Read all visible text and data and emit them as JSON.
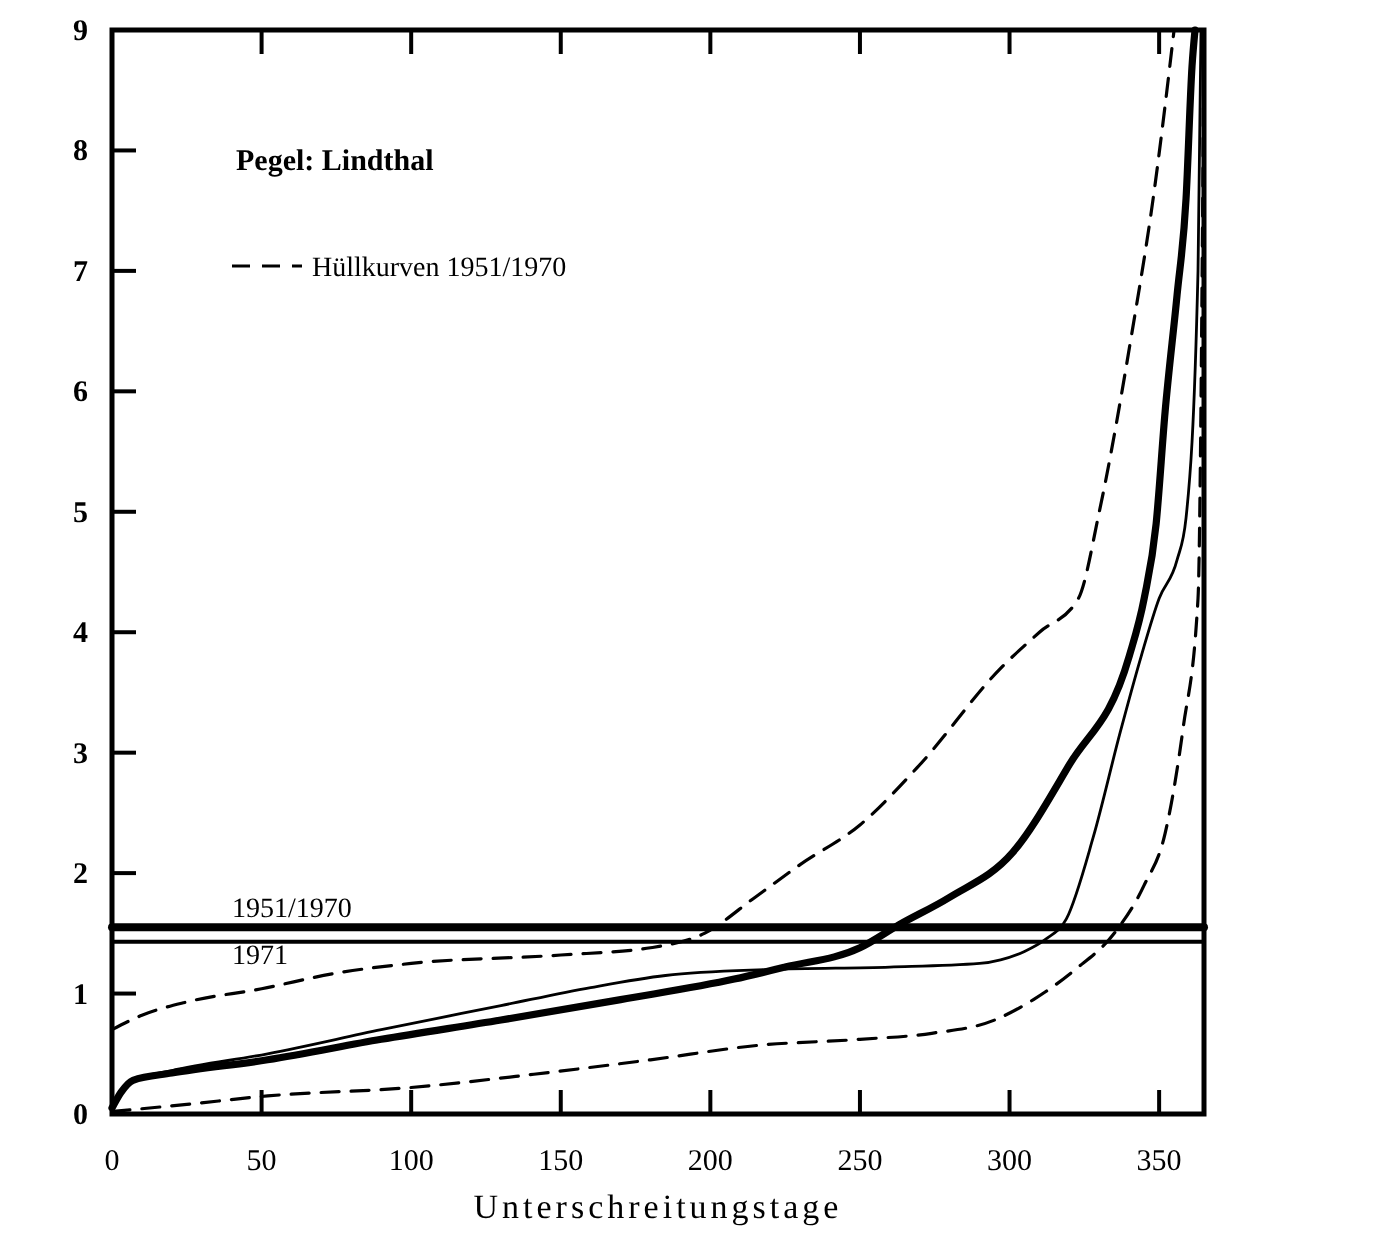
{
  "chart_data": {
    "type": "line",
    "xlabel": "Unterschreitungstage",
    "xlim": [
      0,
      365
    ],
    "ylim": [
      0,
      9
    ],
    "xticks": [
      0,
      50,
      100,
      150,
      200,
      250,
      300,
      350
    ],
    "yticks": [
      0,
      1,
      2,
      3,
      4,
      5,
      6,
      7,
      8,
      9
    ],
    "grid": false,
    "legend": "top left",
    "annotations": [
      "Pegel: Lindthal"
    ],
    "series": [
      {
        "name": "Hüllkurven 1951/1970",
        "color": "#000000",
        "line_style": "dashed",
        "x": [
          0,
          10,
          25,
          50,
          75,
          100,
          150,
          180,
          198,
          215,
          230,
          250,
          270,
          297,
          310,
          323,
          330,
          341,
          348,
          355
        ],
        "values": [
          0.7,
          0.82,
          0.93,
          1.04,
          1.17,
          1.25,
          1.32,
          1.38,
          1.5,
          1.8,
          2.07,
          2.4,
          2.9,
          3.7,
          4.0,
          4.28,
          5.0,
          6.5,
          7.6,
          9
        ]
      },
      {
        "color": "#000000",
        "line_style": "dashed",
        "x": [
          0,
          25,
          52,
          100,
          141,
          180,
          216,
          250,
          274,
          295,
          308,
          322,
          335,
          345,
          352,
          358,
          363,
          365
        ],
        "values": [
          0.02,
          0.08,
          0.15,
          0.22,
          0.33,
          0.45,
          0.57,
          0.62,
          0.67,
          0.78,
          0.95,
          1.2,
          1.5,
          1.9,
          2.33,
          3.2,
          4.28,
          9
        ]
      },
      {
        "color": "#000000",
        "line_style": "solid",
        "x": [
          0,
          3,
          7,
          20,
          52,
          90,
          130,
          170,
          208,
          225,
          250,
          263,
          280,
          301,
          320,
          340,
          345,
          349,
          352,
          356,
          359,
          361,
          362
        ],
        "values": [
          0.05,
          0.18,
          0.28,
          0.34,
          0.45,
          0.62,
          0.78,
          0.95,
          1.12,
          1.22,
          1.38,
          1.57,
          1.8,
          2.17,
          2.9,
          3.8,
          4.28,
          4.9,
          5.83,
          6.8,
          7.6,
          8.7,
          9
        ]
      },
      {
        "color": "#000000",
        "line_style": "solid",
        "x": [
          0,
          3,
          7,
          20,
          52,
          90,
          130,
          160,
          185,
          220,
          260,
          290,
          297,
          305,
          312,
          319,
          328,
          337,
          344,
          350,
          356,
          359,
          363,
          364
        ],
        "values": [
          0.05,
          0.18,
          0.28,
          0.36,
          0.5,
          0.7,
          0.9,
          1.05,
          1.15,
          1.2,
          1.22,
          1.25,
          1.28,
          1.35,
          1.45,
          1.62,
          2.3,
          3.17,
          3.8,
          4.28,
          4.6,
          4.95,
          7,
          9
        ]
      },
      {
        "name": "1951/1970",
        "color": "#000000",
        "line_style": "solid",
        "x": [
          0,
          365
        ],
        "values": [
          1.55,
          1.55
        ]
      },
      {
        "name": "1971",
        "color": "#000000",
        "line_style": "solid",
        "x": [
          0,
          365
        ],
        "values": [
          1.43,
          1.43
        ]
      }
    ]
  }
}
